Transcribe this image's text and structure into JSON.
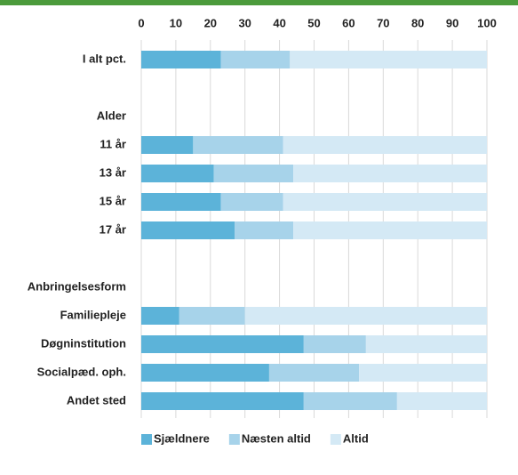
{
  "chart_data": {
    "type": "bar",
    "orientation": "horizontal",
    "stacked": true,
    "categories": [
      "I alt pct.",
      null,
      "Alder",
      "11 år",
      "13 år",
      "15 år",
      "17 år",
      null,
      "Anbringelsesform",
      "Familiepleje",
      "Døgninstitution",
      "Socialpæd. oph.",
      "Andet sted"
    ],
    "series": [
      {
        "name": "Sjældnere",
        "color": "#5cb3d9",
        "values": [
          23,
          null,
          null,
          15,
          21,
          23,
          27,
          null,
          null,
          11,
          47,
          37,
          47
        ]
      },
      {
        "name": "Næsten altid",
        "color": "#a7d3ea",
        "values": [
          20,
          null,
          null,
          26,
          23,
          18,
          17,
          null,
          null,
          19,
          18,
          26,
          27
        ]
      },
      {
        "name": "Altid",
        "color": "#d4e9f5",
        "values": [
          57,
          null,
          null,
          59,
          56,
          59,
          56,
          null,
          null,
          70,
          35,
          37,
          26
        ]
      }
    ],
    "xlim": [
      0,
      100
    ],
    "xticks": [
      0,
      10,
      20,
      30,
      40,
      50,
      60,
      70,
      80,
      90,
      100
    ],
    "grid": true,
    "legend": "bottom"
  }
}
